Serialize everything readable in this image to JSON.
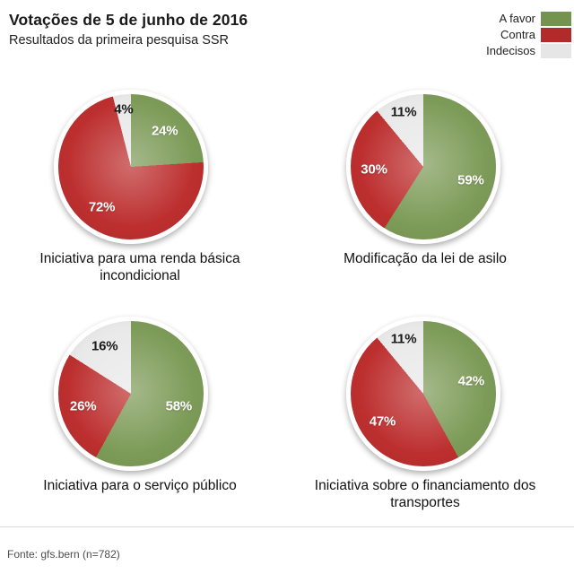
{
  "header": {
    "title": "Votações de 5 de junho de 2016",
    "subtitle": "Resultados da primeira pesquisa SSR"
  },
  "legend": {
    "items": [
      {
        "label": "A favor",
        "color": "#74934e"
      },
      {
        "label": "Contra",
        "color": "#b22a2a"
      },
      {
        "label": "Indecisos",
        "color": "#e6e6e6"
      }
    ]
  },
  "colors": {
    "slices": [
      "#7d9b58",
      "#bd2f2f",
      "#e9e9e9"
    ],
    "label_on_color": "#ffffff",
    "label_on_gray": "#1a1a1a"
  },
  "chart_data": [
    {
      "type": "pie",
      "title": "Iniciativa para uma renda básica incondicional",
      "categories": [
        "A favor",
        "Contra",
        "Indecisos"
      ],
      "values": [
        24,
        72,
        4
      ],
      "start_angle_deg": 0,
      "direction": "clockwise"
    },
    {
      "type": "pie",
      "title": "Modificação da lei de asilo",
      "categories": [
        "A favor",
        "Contra",
        "Indecisos"
      ],
      "values": [
        59,
        30,
        11
      ],
      "start_angle_deg": 0,
      "direction": "clockwise"
    },
    {
      "type": "pie",
      "title": "Iniciativa para o serviço público",
      "categories": [
        "A favor",
        "Contra",
        "Indecisos"
      ],
      "values": [
        58,
        26,
        16
      ],
      "start_angle_deg": 0,
      "direction": "clockwise"
    },
    {
      "type": "pie",
      "title": "Iniciativa sobre o financiamento dos transportes",
      "categories": [
        "A favor",
        "Contra",
        "Indecisos"
      ],
      "values": [
        42,
        47,
        11
      ],
      "start_angle_deg": 0,
      "direction": "clockwise"
    }
  ],
  "footer": {
    "source": "Fonte: gfs.bern (n=782)"
  }
}
